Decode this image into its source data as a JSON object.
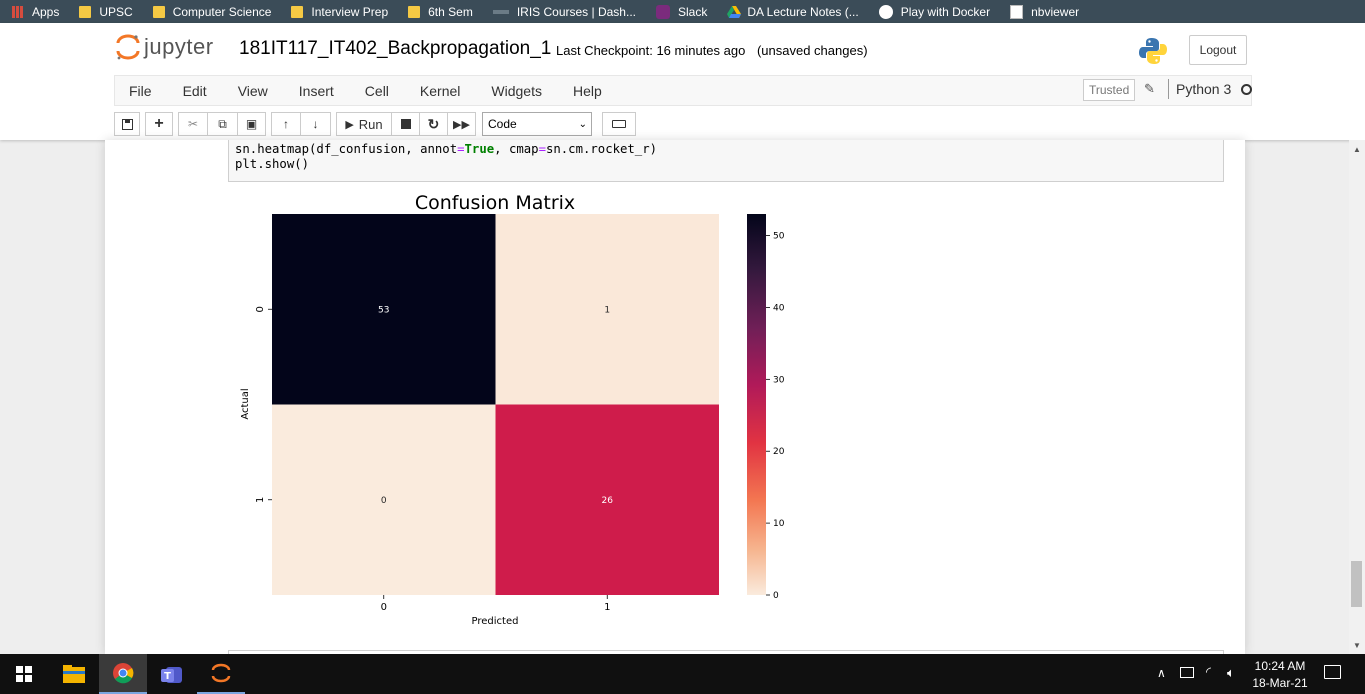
{
  "bookmarks": [
    {
      "label": "Apps"
    },
    {
      "label": "UPSC"
    },
    {
      "label": "Computer Science"
    },
    {
      "label": "Interview Prep"
    },
    {
      "label": "6th Sem"
    },
    {
      "label": "IRIS Courses | Dash..."
    },
    {
      "label": "Slack"
    },
    {
      "label": "DA Lecture Notes (..."
    },
    {
      "label": "Play with Docker"
    },
    {
      "label": "nbviewer"
    }
  ],
  "header": {
    "logo_text": "jupyter",
    "notebook_name": "181IT117_IT402_Backpropagation_1",
    "checkpoint": "Last Checkpoint: 16 minutes ago",
    "unsaved": "(unsaved changes)",
    "logout": "Logout"
  },
  "menubar": {
    "items": [
      "File",
      "Edit",
      "View",
      "Insert",
      "Cell",
      "Kernel",
      "Widgets",
      "Help"
    ],
    "trusted": "Trusted",
    "kernel_name": "Python 3"
  },
  "toolbar": {
    "run_label": "Run",
    "cell_type": "Code"
  },
  "code": {
    "line1_a": "sn.heatmap(df_confusion, annot",
    "line1_eq1": "=",
    "line1_kw": "True",
    "line1_b": ", cmap",
    "line1_eq2": "=",
    "line1_c": "sn.cm.rocket_r)",
    "line2": "plt.show()"
  },
  "chart_data": {
    "type": "heatmap",
    "title": "Confusion Matrix",
    "xlabel": "Predicted",
    "ylabel": "Actual",
    "x_categories": [
      "0",
      "1"
    ],
    "y_categories": [
      "0",
      "1"
    ],
    "values": [
      [
        53,
        1
      ],
      [
        0,
        26
      ]
    ],
    "colormap": "rocket_r",
    "colorbar": {
      "ticks": [
        "0",
        "10",
        "20",
        "30",
        "40",
        "50"
      ],
      "range": [
        0,
        53
      ]
    },
    "cell_colors": [
      [
        "#03051a",
        "#fae8d9"
      ],
      [
        "#faebdd",
        "#cf1c4b"
      ]
    ]
  },
  "taskbar": {
    "time": "10:24 AM",
    "date": "18-Mar-21"
  }
}
